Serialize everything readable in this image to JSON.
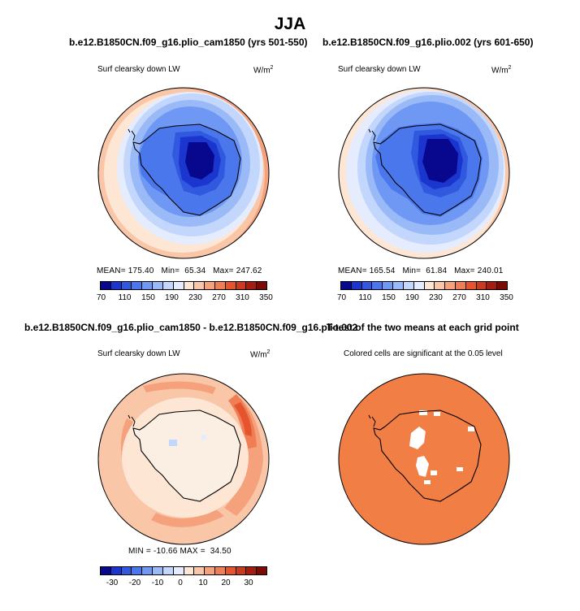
{
  "main_title": "JJA",
  "panel1": {
    "title": "b.e12.B1850CN.f09_g16.plio_cam1850 (yrs 501-550)",
    "variable": "Surf clearsky down LW",
    "units": "W/m",
    "units_sup": "2",
    "mean_label": "MEAN=",
    "mean": "175.40",
    "min_label": "Min=",
    "min": "65.34",
    "max_label": "Max=",
    "max": "247.62"
  },
  "panel2": {
    "title": "b.e12.B1850CN.f09_g16.plio.002 (yrs 601-650)",
    "variable": "Surf clearsky down LW",
    "units": "W/m",
    "units_sup": "2",
    "mean_label": "MEAN=",
    "mean": "165.54",
    "min_label": "Min=",
    "min": "61.84",
    "max_label": "Max=",
    "max": "240.01"
  },
  "panel3": {
    "title": "b.e12.B1850CN.f09_g16.plio_cam1850 - b.e12.B1850CN.f09_g16.plio.002",
    "variable": "Surf clearsky down LW",
    "units": "W/m",
    "units_sup": "2",
    "min_label": "MIN =",
    "min": "-10.66",
    "max_label": "MAX =",
    "max": "34.50"
  },
  "panel4": {
    "title": "T-test of the two means at each grid point",
    "subtitle": "Colored cells are significant at the 0.05 level"
  },
  "colorbar_top": {
    "colors": [
      "#08088f",
      "#1b36cf",
      "#3159df",
      "#4a78ec",
      "#6e98f3",
      "#99b9f7",
      "#c3d6fb",
      "#e4ecfd",
      "#fde6d4",
      "#f9c6a8",
      "#f5a17c",
      "#f07e55",
      "#e4552f",
      "#c93a1e",
      "#a61d10",
      "#7c0a05"
    ],
    "labels": [
      "70",
      "110",
      "150",
      "190",
      "230",
      "270",
      "310",
      "350"
    ]
  },
  "colorbar_diff": {
    "colors": [
      "#08088f",
      "#1b36cf",
      "#3159df",
      "#4a78ec",
      "#6e98f3",
      "#99b9f7",
      "#c3d6fb",
      "#e4ecfd",
      "#fde6d4",
      "#f9c6a8",
      "#f5a17c",
      "#f07e55",
      "#e4552f",
      "#c93a1e",
      "#a61d10",
      "#7c0a05"
    ],
    "labels": [
      "-30",
      "-20",
      "-10",
      "0",
      "10",
      "20",
      "30"
    ]
  },
  "map_colors": {
    "land_outline": "#000000",
    "ttest_fill": "#f07e45"
  }
}
